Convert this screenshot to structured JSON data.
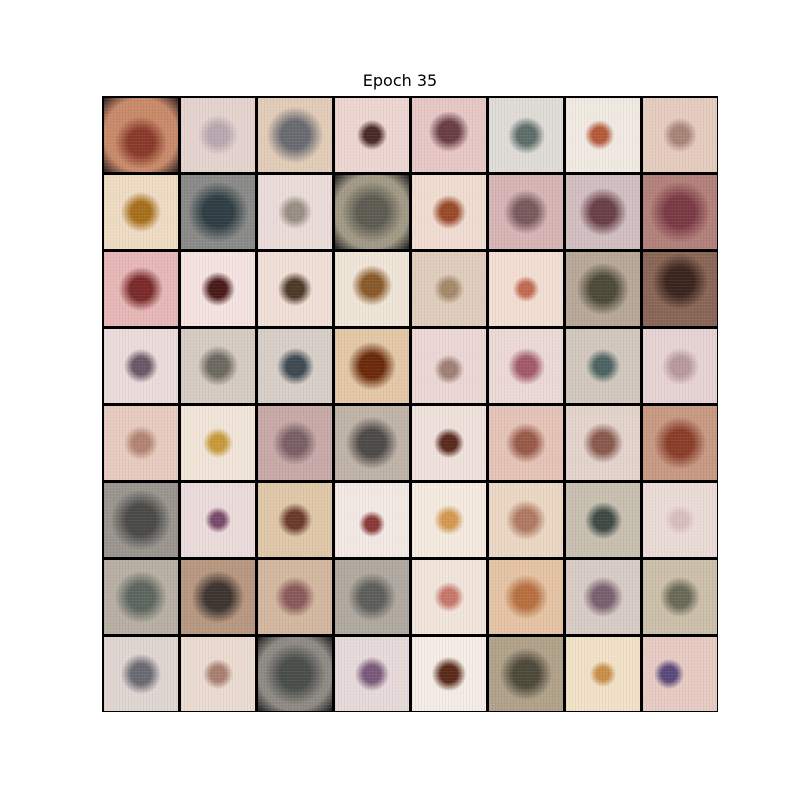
{
  "title": "Epoch 35",
  "grid": {
    "rows": 8,
    "cols": 8,
    "tiles": [
      {
        "bg": "#c98a6a",
        "spot": "#8a3a2a",
        "size": 0.7,
        "dx": 0.0,
        "dy": 0.1,
        "edge": "#2a1a1a"
      },
      {
        "bg": "#e6d4cf",
        "spot": "#b9a9b0",
        "size": 0.55,
        "dx": 0.0,
        "dy": 0.0,
        "edge": ""
      },
      {
        "bg": "#e3cdb8",
        "spot": "#6a6a72",
        "size": 0.75,
        "dx": 0.0,
        "dy": 0.0,
        "edge": ""
      },
      {
        "bg": "#eed7d2",
        "spot": "#4a2a28",
        "size": 0.4,
        "dx": 0.0,
        "dy": 0.0,
        "edge": ""
      },
      {
        "bg": "#e8c8c6",
        "spot": "#6a3e45",
        "size": 0.55,
        "dx": 0.0,
        "dy": -0.05,
        "edge": ""
      },
      {
        "bg": "#e0ddd8",
        "spot": "#5e6e6a",
        "size": 0.5,
        "dx": 0.0,
        "dy": 0.0,
        "edge": ""
      },
      {
        "bg": "#f1ebe3",
        "spot": "#b65a3a",
        "size": 0.4,
        "dx": -0.05,
        "dy": 0.0,
        "edge": ""
      },
      {
        "bg": "#e6cdbf",
        "spot": "#a9857a",
        "size": 0.45,
        "dx": 0.0,
        "dy": 0.0,
        "edge": ""
      },
      {
        "bg": "#f0dcc4",
        "spot": "#a8701c",
        "size": 0.55,
        "dx": 0.0,
        "dy": 0.0,
        "edge": ""
      },
      {
        "bg": "#8a8a88",
        "spot": "#2f3e44",
        "size": 0.8,
        "dx": 0.0,
        "dy": 0.0,
        "edge": ""
      },
      {
        "bg": "#ebddd9",
        "spot": "#9a8f85",
        "size": 0.45,
        "dx": 0.0,
        "dy": 0.0,
        "edge": ""
      },
      {
        "bg": "#a29a86",
        "spot": "#5e5c52",
        "size": 0.8,
        "dx": 0.0,
        "dy": 0.0,
        "edge": "#1a1a1a"
      },
      {
        "bg": "#f1ddd2",
        "spot": "#9a4a2a",
        "size": 0.45,
        "dx": 0.0,
        "dy": 0.0,
        "edge": ""
      },
      {
        "bg": "#d7b5b5",
        "spot": "#7a5a5e",
        "size": 0.6,
        "dx": 0.0,
        "dy": 0.0,
        "edge": ""
      },
      {
        "bg": "#d2bfc2",
        "spot": "#6a4048",
        "size": 0.65,
        "dx": 0.0,
        "dy": 0.0,
        "edge": ""
      },
      {
        "bg": "#b3807a",
        "spot": "#7a3a44",
        "size": 0.8,
        "dx": 0.0,
        "dy": 0.0,
        "edge": ""
      },
      {
        "bg": "#e8b8b8",
        "spot": "#7a2a2a",
        "size": 0.6,
        "dx": 0.0,
        "dy": 0.0,
        "edge": ""
      },
      {
        "bg": "#f5e4e1",
        "spot": "#4a1a1a",
        "size": 0.45,
        "dx": 0.0,
        "dy": 0.0,
        "edge": ""
      },
      {
        "bg": "#f2e0d8",
        "spot": "#4e3a28",
        "size": 0.45,
        "dx": 0.0,
        "dy": 0.0,
        "edge": ""
      },
      {
        "bg": "#f0e6d8",
        "spot": "#8a5a2a",
        "size": 0.55,
        "dx": 0.0,
        "dy": -0.05,
        "edge": ""
      },
      {
        "bg": "#e0cdbd",
        "spot": "#a48a6a",
        "size": 0.4,
        "dx": 0.0,
        "dy": 0.0,
        "edge": ""
      },
      {
        "bg": "#f3dfd3",
        "spot": "#c26a52",
        "size": 0.35,
        "dx": 0.0,
        "dy": 0.0,
        "edge": ""
      },
      {
        "bg": "#b8a898",
        "spot": "#4e4a3a",
        "size": 0.7,
        "dx": 0.0,
        "dy": 0.0,
        "edge": ""
      },
      {
        "bg": "#8a6656",
        "spot": "#3a241e",
        "size": 0.75,
        "dx": 0.0,
        "dy": -0.1,
        "edge": ""
      },
      {
        "bg": "#ecdcdc",
        "spot": "#6a5866",
        "size": 0.45,
        "dx": 0.0,
        "dy": 0.0,
        "edge": ""
      },
      {
        "bg": "#d6ccc2",
        "spot": "#6e6a62",
        "size": 0.55,
        "dx": 0.0,
        "dy": 0.0,
        "edge": ""
      },
      {
        "bg": "#d8d0c8",
        "spot": "#3e4a52",
        "size": 0.5,
        "dx": 0.0,
        "dy": 0.0,
        "edge": ""
      },
      {
        "bg": "#e4c8a8",
        "spot": "#6a2a0a",
        "size": 0.65,
        "dx": 0.0,
        "dy": 0.0,
        "edge": ""
      },
      {
        "bg": "#ecd8d4",
        "spot": "#a08078",
        "size": 0.4,
        "dx": 0.0,
        "dy": 0.05,
        "edge": ""
      },
      {
        "bg": "#eddad6",
        "spot": "#a25a6a",
        "size": 0.5,
        "dx": 0.0,
        "dy": 0.0,
        "edge": ""
      },
      {
        "bg": "#d2c8be",
        "spot": "#4e6462",
        "size": 0.45,
        "dx": 0.0,
        "dy": 0.0,
        "edge": ""
      },
      {
        "bg": "#e8d4d4",
        "spot": "#b99a9e",
        "size": 0.5,
        "dx": 0.0,
        "dy": 0.0,
        "edge": ""
      },
      {
        "bg": "#e8ccc0",
        "spot": "#b48474",
        "size": 0.45,
        "dx": 0.0,
        "dy": 0.0,
        "edge": ""
      },
      {
        "bg": "#f2e6da",
        "spot": "#c89a3a",
        "size": 0.4,
        "dx": 0.0,
        "dy": 0.0,
        "edge": ""
      },
      {
        "bg": "#c8aaa8",
        "spot": "#7a6066",
        "size": 0.6,
        "dx": 0.0,
        "dy": 0.0,
        "edge": ""
      },
      {
        "bg": "#c0b4a8",
        "spot": "#4e4a48",
        "size": 0.7,
        "dx": 0.0,
        "dy": 0.0,
        "edge": ""
      },
      {
        "bg": "#f0e2dc",
        "spot": "#5a2a1e",
        "size": 0.4,
        "dx": 0.0,
        "dy": 0.0,
        "edge": ""
      },
      {
        "bg": "#e6c4b8",
        "spot": "#9a5a4a",
        "size": 0.55,
        "dx": 0.0,
        "dy": 0.0,
        "edge": ""
      },
      {
        "bg": "#e4d4cc",
        "spot": "#8a5a4e",
        "size": 0.55,
        "dx": 0.0,
        "dy": 0.0,
        "edge": ""
      },
      {
        "bg": "#c89a84",
        "spot": "#8a3e2a",
        "size": 0.7,
        "dx": 0.0,
        "dy": 0.0,
        "edge": ""
      },
      {
        "bg": "#9a968e",
        "spot": "#4a4a48",
        "size": 0.8,
        "dx": 0.0,
        "dy": 0.0,
        "edge": ""
      },
      {
        "bg": "#ecdcdc",
        "spot": "#7a4a6a",
        "size": 0.35,
        "dx": 0.0,
        "dy": 0.0,
        "edge": ""
      },
      {
        "bg": "#e0c8a8",
        "spot": "#6a3a2a",
        "size": 0.45,
        "dx": 0.0,
        "dy": 0.0,
        "edge": ""
      },
      {
        "bg": "#f3eae6",
        "spot": "#8a3a3a",
        "size": 0.35,
        "dx": 0.0,
        "dy": 0.05,
        "edge": ""
      },
      {
        "bg": "#f5ebe0",
        "spot": "#d49a52",
        "size": 0.4,
        "dx": 0.0,
        "dy": 0.0,
        "edge": ""
      },
      {
        "bg": "#ecd8c4",
        "spot": "#b27a62",
        "size": 0.55,
        "dx": 0.0,
        "dy": 0.0,
        "edge": ""
      },
      {
        "bg": "#c8c0b0",
        "spot": "#3e4a44",
        "size": 0.5,
        "dx": 0.0,
        "dy": 0.0,
        "edge": ""
      },
      {
        "bg": "#ecdcd8",
        "spot": "#d8bfc0",
        "size": 0.4,
        "dx": 0.0,
        "dy": 0.0,
        "edge": ""
      },
      {
        "bg": "#b8b0a4",
        "spot": "#5e6660",
        "size": 0.7,
        "dx": 0.0,
        "dy": 0.0,
        "edge": ""
      },
      {
        "bg": "#b89880",
        "spot": "#3e3430",
        "size": 0.7,
        "dx": 0.0,
        "dy": 0.0,
        "edge": ""
      },
      {
        "bg": "#d4b8a0",
        "spot": "#8a5a5a",
        "size": 0.55,
        "dx": 0.0,
        "dy": 0.0,
        "edge": ""
      },
      {
        "bg": "#b0aaa0",
        "spot": "#5e5e5a",
        "size": 0.65,
        "dx": 0.0,
        "dy": 0.0,
        "edge": ""
      },
      {
        "bg": "#f2e6dc",
        "spot": "#c8786a",
        "size": 0.4,
        "dx": 0.0,
        "dy": 0.0,
        "edge": ""
      },
      {
        "bg": "#e6c4a4",
        "spot": "#b87040",
        "size": 0.6,
        "dx": 0.0,
        "dy": 0.0,
        "edge": ""
      },
      {
        "bg": "#d8ccc6",
        "spot": "#7a6070",
        "size": 0.55,
        "dx": 0.0,
        "dy": 0.0,
        "edge": ""
      },
      {
        "bg": "#ccc0aa",
        "spot": "#6a6a58",
        "size": 0.55,
        "dx": 0.0,
        "dy": 0.0,
        "edge": ""
      },
      {
        "bg": "#e0d6d2",
        "spot": "#6a6a72",
        "size": 0.55,
        "dx": 0.0,
        "dy": 0.0,
        "edge": ""
      },
      {
        "bg": "#ecdcd2",
        "spot": "#a88070",
        "size": 0.4,
        "dx": 0.0,
        "dy": 0.0,
        "edge": ""
      },
      {
        "bg": "#8e8a84",
        "spot": "#4a4e4a",
        "size": 0.8,
        "dx": 0.0,
        "dy": 0.0,
        "edge": "#1a1a1a"
      },
      {
        "bg": "#e8dada",
        "spot": "#7a5a7a",
        "size": 0.45,
        "dx": 0.0,
        "dy": 0.0,
        "edge": ""
      },
      {
        "bg": "#f5ede6",
        "spot": "#5a2a1a",
        "size": 0.45,
        "dx": 0.0,
        "dy": 0.0,
        "edge": ""
      },
      {
        "bg": "#b2a28a",
        "spot": "#4e4a3a",
        "size": 0.7,
        "dx": 0.0,
        "dy": 0.0,
        "edge": ""
      },
      {
        "bg": "#f2e2c8",
        "spot": "#c8904a",
        "size": 0.35,
        "dx": 0.0,
        "dy": 0.0,
        "edge": ""
      },
      {
        "bg": "#e8ccc4",
        "spot": "#5a4a7a",
        "size": 0.4,
        "dx": -0.15,
        "dy": 0.0,
        "edge": ""
      }
    ]
  }
}
